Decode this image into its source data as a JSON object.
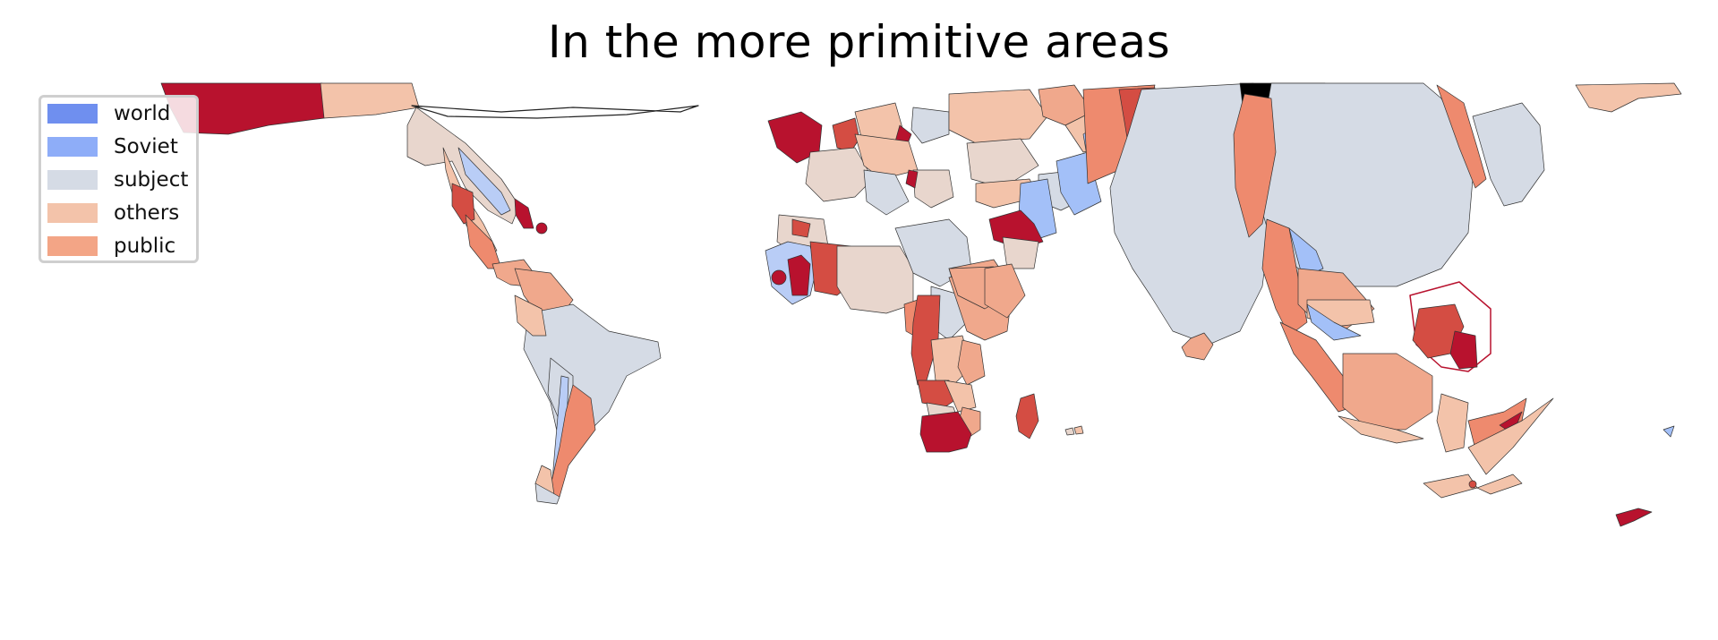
{
  "title": "In the more primitive areas",
  "legend": [
    {
      "label": "world",
      "color": "#6f8fef"
    },
    {
      "label": "Soviet",
      "color": "#8eadf8"
    },
    {
      "label": "subject",
      "color": "#d5dbe5"
    },
    {
      "label": "others",
      "color": "#f3c3aa"
    },
    {
      "label": "public",
      "color": "#f3a586"
    }
  ],
  "palette": {
    "deep_red": "#b8122e",
    "red": "#d44d43",
    "salmon": "#ee8a6e",
    "light_salmon": "#f0a88c",
    "peach": "#f3c3aa",
    "beige": "#e8d6cd",
    "gray_blue": "#d5dbe5",
    "light_blue": "#b9cdf6",
    "blue": "#a3c0f8",
    "black": "#000000",
    "outline": "#333333"
  }
}
